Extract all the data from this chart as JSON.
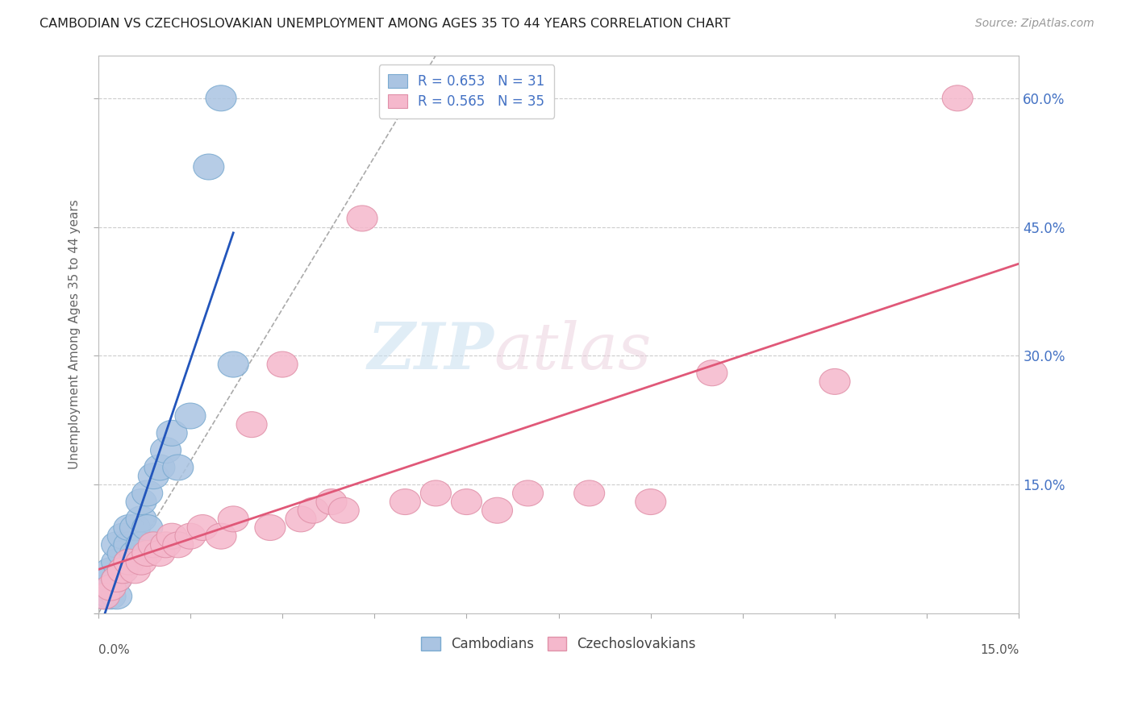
{
  "title": "CAMBODIAN VS CZECHOSLOVAKIAN UNEMPLOYMENT AMONG AGES 35 TO 44 YEARS CORRELATION CHART",
  "source": "Source: ZipAtlas.com",
  "ylabel": "Unemployment Among Ages 35 to 44 years",
  "xmin": 0.0,
  "xmax": 0.15,
  "ymin": 0.0,
  "ymax": 0.65,
  "cambodian_color": "#aac4e2",
  "cambodian_edge": "#7aaad0",
  "czechoslovakian_color": "#f5b8cc",
  "czechoslovakian_edge": "#e090a8",
  "cambodian_R": 0.653,
  "cambodian_N": 31,
  "czechoslovakian_R": 0.565,
  "czechoslovakian_N": 35,
  "regression_cambodian_color": "#2255bb",
  "regression_czechoslovakian_color": "#e05878",
  "diag_color": "#aaaaaa",
  "background_color": "#ffffff",
  "grid_color": "#cccccc",
  "right_axis_color": "#4472c4",
  "ytick_vals": [
    0.0,
    0.15,
    0.3,
    0.45,
    0.6
  ],
  "ytick_labels": [
    "",
    "15.0%",
    "30.0%",
    "45.0%",
    "60.0%"
  ],
  "camb_x": [
    0.001,
    0.001,
    0.002,
    0.002,
    0.002,
    0.003,
    0.003,
    0.003,
    0.003,
    0.004,
    0.004,
    0.004,
    0.005,
    0.005,
    0.005,
    0.006,
    0.006,
    0.007,
    0.007,
    0.007,
    0.008,
    0.008,
    0.009,
    0.01,
    0.011,
    0.012,
    0.013,
    0.015,
    0.018,
    0.02,
    0.022
  ],
  "camb_y": [
    0.02,
    0.03,
    0.02,
    0.04,
    0.05,
    0.02,
    0.04,
    0.06,
    0.08,
    0.05,
    0.07,
    0.09,
    0.06,
    0.08,
    0.1,
    0.07,
    0.1,
    0.08,
    0.11,
    0.13,
    0.1,
    0.14,
    0.16,
    0.17,
    0.19,
    0.21,
    0.17,
    0.23,
    0.52,
    0.6,
    0.29
  ],
  "czech_x": [
    0.001,
    0.002,
    0.003,
    0.004,
    0.005,
    0.006,
    0.007,
    0.008,
    0.009,
    0.01,
    0.011,
    0.012,
    0.013,
    0.015,
    0.017,
    0.02,
    0.022,
    0.025,
    0.028,
    0.03,
    0.033,
    0.035,
    0.038,
    0.04,
    0.043,
    0.05,
    0.055,
    0.06,
    0.065,
    0.07,
    0.08,
    0.09,
    0.1,
    0.12,
    0.14
  ],
  "czech_y": [
    0.02,
    0.03,
    0.04,
    0.05,
    0.06,
    0.05,
    0.06,
    0.07,
    0.08,
    0.07,
    0.08,
    0.09,
    0.08,
    0.09,
    0.1,
    0.09,
    0.11,
    0.22,
    0.1,
    0.29,
    0.11,
    0.12,
    0.13,
    0.12,
    0.46,
    0.13,
    0.14,
    0.13,
    0.12,
    0.14,
    0.14,
    0.13,
    0.28,
    0.27,
    0.6
  ]
}
